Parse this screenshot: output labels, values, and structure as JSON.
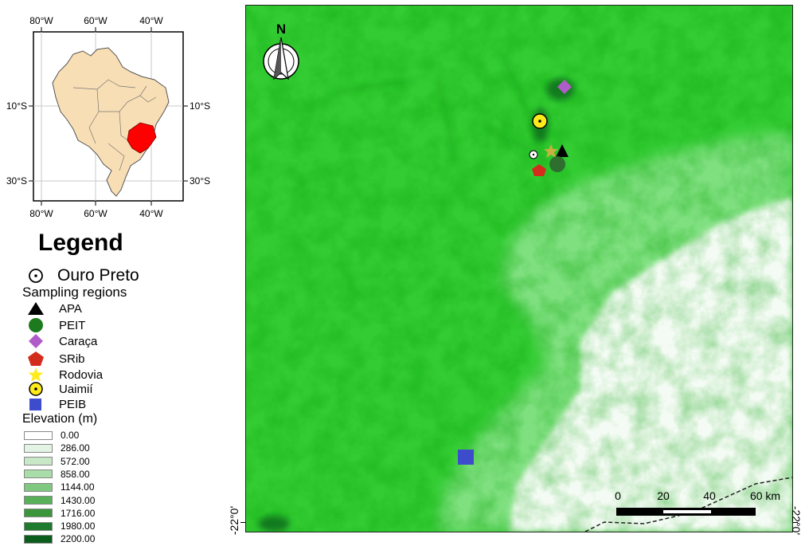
{
  "inset_map": {
    "top_lon_labels": [
      "80°W",
      "60°W",
      "40°W"
    ],
    "bottom_lon_labels": [
      "80°W",
      "60°W",
      "40°W"
    ],
    "left_lat_labels": [
      "10°S",
      "30°S"
    ],
    "right_lat_labels": [
      "10°S",
      "30°S"
    ],
    "country_color": "#f8deb4",
    "highlight_color": "#ff0000"
  },
  "legend": {
    "title": "Legend",
    "ouro_preto": {
      "label": "Ouro Preto",
      "icon": "circled-dot-icon"
    },
    "sampling_title": "Sampling regions",
    "regions": [
      {
        "label": "APA",
        "icon": "triangle-icon",
        "color": "#000000"
      },
      {
        "label": "PEIT",
        "icon": "circle-icon",
        "color": "#1e7a1e"
      },
      {
        "label": "Caraça",
        "icon": "diamond-icon",
        "color": "#b05cc8"
      },
      {
        "label": "SRib",
        "icon": "pentagon-icon",
        "color": "#d42c1c"
      },
      {
        "label": "Rodovia",
        "icon": "star-icon",
        "color": "#ffeb1c"
      },
      {
        "label": "Uaimií",
        "icon": "circled-dot-icon",
        "color": "#ffeb1c"
      },
      {
        "label": "PEIB",
        "icon": "square-icon",
        "color": "#3c4ccc"
      }
    ],
    "elevation_title": "Elevation (m)",
    "elevation_classes": [
      {
        "value": "0.00",
        "color": "#ffffff"
      },
      {
        "value": "286.00",
        "color": "#e4f4e4"
      },
      {
        "value": "572.00",
        "color": "#c8e8c8"
      },
      {
        "value": "858.00",
        "color": "#a8dca8"
      },
      {
        "value": "1144.00",
        "color": "#80c880"
      },
      {
        "value": "1430.00",
        "color": "#58b058"
      },
      {
        "value": "1716.00",
        "color": "#3a963a"
      },
      {
        "value": "1980.00",
        "color": "#1e7a2c"
      },
      {
        "value": "2200.00",
        "color": "#0c5c1c"
      }
    ]
  },
  "main_map": {
    "north_label": "N",
    "lat_label_left": "-22°0'",
    "lat_label_right": "-22°0'",
    "scale_bar_labels": [
      "0",
      "20",
      "40",
      "60 km"
    ],
    "elevation_colors": {
      "high": "#33cc33",
      "mid": "#7fe07f",
      "low": "#f4fbf4"
    }
  }
}
